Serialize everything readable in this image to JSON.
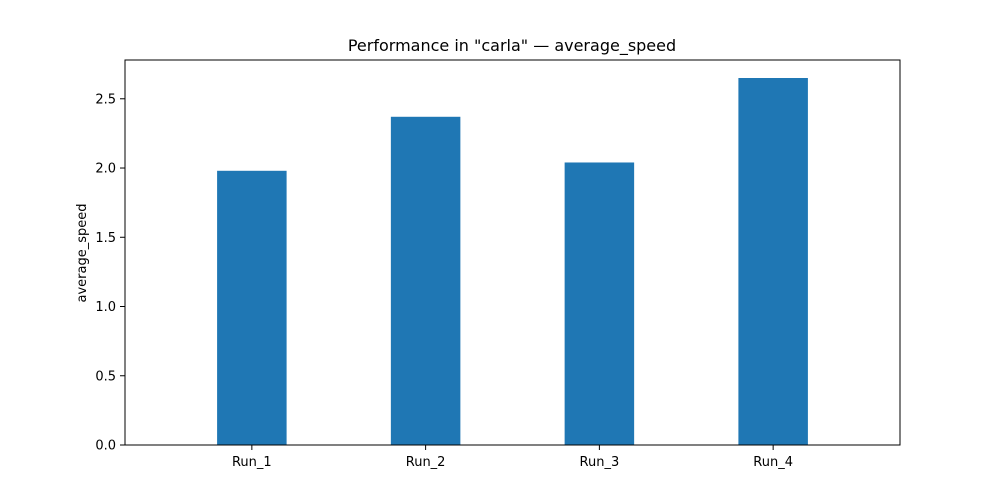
{
  "chart_data": {
    "type": "bar",
    "title": "Performance in \"carla\" — average_speed",
    "xlabel": "",
    "ylabel": "average_speed",
    "categories": [
      "Run_1",
      "Run_2",
      "Run_3",
      "Run_4"
    ],
    "values": [
      1.98,
      2.37,
      2.04,
      2.65
    ],
    "ylim": [
      0,
      2.78
    ],
    "yticks": [
      "0.0",
      "0.5",
      "1.0",
      "1.5",
      "2.0",
      "2.5"
    ],
    "bar_color": "#1f77b4",
    "grid": false,
    "legend": "none"
  }
}
